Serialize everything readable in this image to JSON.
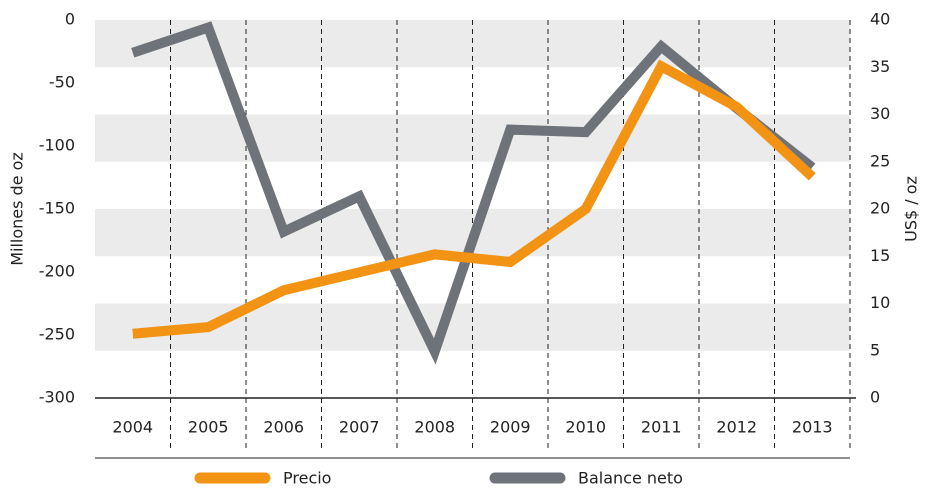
{
  "chart_data": {
    "type": "line",
    "categories": [
      "2004",
      "2005",
      "2006",
      "2007",
      "2008",
      "2009",
      "2010",
      "2011",
      "2012",
      "2013"
    ],
    "ylabel": "Millones de oz",
    "y2label": "US$ / oz",
    "ylim": [
      -300,
      0
    ],
    "yticks": [
      0,
      -50,
      -100,
      -150,
      -200,
      -250,
      -300
    ],
    "y2lim": [
      0,
      40
    ],
    "y2ticks": [
      40,
      35,
      30,
      25,
      20,
      15,
      10,
      5,
      0
    ],
    "series": [
      {
        "name": "Precio",
        "color": "#f39313",
        "axis": "y2",
        "values": [
          6.8,
          7.5,
          11.4,
          13.3,
          15.2,
          14.4,
          20.0,
          35.1,
          30.8,
          23.4
        ]
      },
      {
        "name": "Balance neto",
        "color": "#6d7378",
        "values": [
          -26,
          -6,
          -168,
          -140,
          -263,
          -87,
          -89,
          -21,
          -70,
          -117
        ]
      }
    ],
    "legend": "bottom",
    "stripes": true
  }
}
